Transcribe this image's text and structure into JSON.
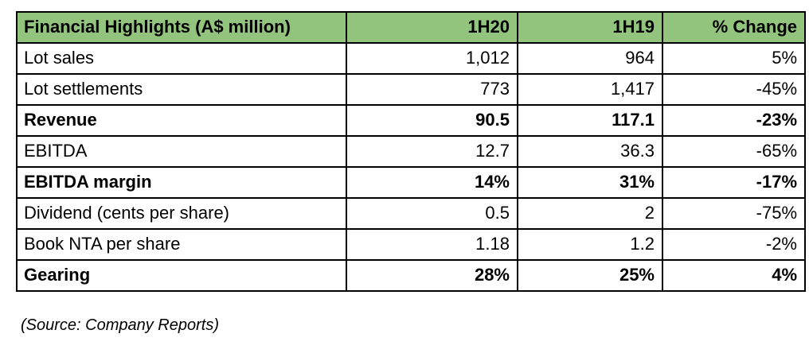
{
  "table": {
    "header": {
      "title": "Financial Highlights (A$ million)",
      "col_1h20": "1H20",
      "col_1h19": "1H19",
      "col_change": "% Change"
    },
    "rows": [
      {
        "label": "Lot sales",
        "v1h20": "1,012",
        "v1h19": "964",
        "change": "5%",
        "bold": false
      },
      {
        "label": "Lot settlements",
        "v1h20": "773",
        "v1h19": "1,417",
        "change": "-45%",
        "bold": false
      },
      {
        "label": "Revenue",
        "v1h20": "90.5",
        "v1h19": "117.1",
        "change": "-23%",
        "bold": true
      },
      {
        "label": "EBITDA",
        "v1h20": "12.7",
        "v1h19": "36.3",
        "change": "-65%",
        "bold": false
      },
      {
        "label": "EBITDA margin",
        "v1h20": "14%",
        "v1h19": "31%",
        "change": "-17%",
        "bold": true
      },
      {
        "label": "Dividend (cents per share)",
        "v1h20": "0.5",
        "v1h19": "2",
        "change": "-75%",
        "bold": false
      },
      {
        "label": "Book NTA per share",
        "v1h20": "1.18",
        "v1h19": "1.2",
        "change": "-2%",
        "bold": false
      },
      {
        "label": "Gearing",
        "v1h20": "28%",
        "v1h19": "25%",
        "change": "4%",
        "bold": true
      }
    ]
  },
  "source_note": "(Source: Company Reports)",
  "colors": {
    "header_bg": "#93c47d",
    "border": "#000000",
    "text": "#000000",
    "background": "#ffffff"
  }
}
